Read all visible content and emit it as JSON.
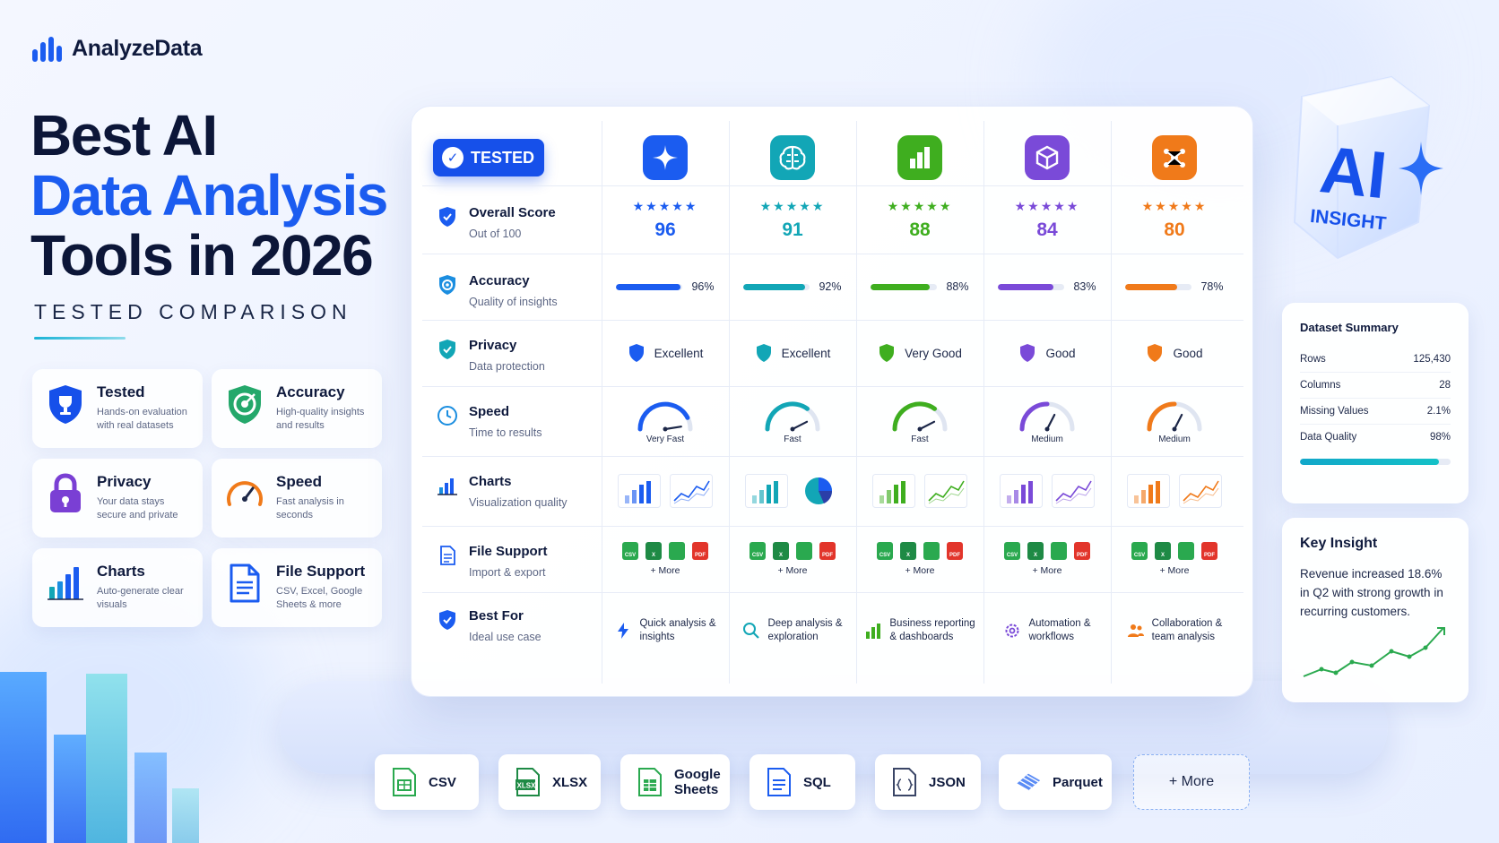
{
  "brand": {
    "name": "AnalyzeData"
  },
  "hero": {
    "line1": "Best AI",
    "line2": "Data Analysis",
    "line3": "Tools in 2026",
    "subtitle": "TESTED COMPARISON"
  },
  "features": [
    {
      "title": "Tested",
      "desc": "Hands-on evaluation with real datasets",
      "icon": "trophy-shield-icon"
    },
    {
      "title": "Accuracy",
      "desc": "High-quality insights and results",
      "icon": "target-shield-icon"
    },
    {
      "title": "Privacy",
      "desc": "Your data stays secure and private",
      "icon": "lock-icon"
    },
    {
      "title": "Speed",
      "desc": "Fast analysis in seconds",
      "icon": "speedometer-icon"
    },
    {
      "title": "Charts",
      "desc": "Auto-generate clear visuals",
      "icon": "bar-chart-icon"
    },
    {
      "title": "File Support",
      "desc": "CSV, Excel, Google Sheets & more",
      "icon": "document-icon"
    }
  ],
  "table": {
    "badge": "TESTED",
    "rows": [
      {
        "title": "Overall Score",
        "sub": "Out of 100"
      },
      {
        "title": "Accuracy",
        "sub": "Quality of insights"
      },
      {
        "title": "Privacy",
        "sub": "Data protection"
      },
      {
        "title": "Speed",
        "sub": "Time to results"
      },
      {
        "title": "Charts",
        "sub": "Visualization quality"
      },
      {
        "title": "File Support",
        "sub": "Import & export"
      },
      {
        "title": "Best For",
        "sub": "Ideal use case"
      }
    ],
    "tools": [
      {
        "icon": "sparkle-icon",
        "color": "#1b5cf0",
        "stars": "★★★★★",
        "score": "96",
        "accuracy": 96,
        "accuracy_label": "96%",
        "privacy": "Excellent",
        "speed": "Very Fast",
        "speed_level": 0.85,
        "best_line1": "Quick analysis &",
        "best_line2": "insights",
        "best_icon": "lightning-icon",
        "more": "+ More"
      },
      {
        "icon": "brain-icon",
        "color": "#12a6b6",
        "stars": "★★★★★",
        "score": "91",
        "accuracy": 92,
        "accuracy_label": "92%",
        "privacy": "Excellent",
        "speed": "Fast",
        "speed_level": 0.7,
        "best_line1": "Deep analysis &",
        "best_line2": "exploration",
        "best_icon": "search-icon",
        "more": "+ More"
      },
      {
        "icon": "bar-chart-icon",
        "color": "#3fae1f",
        "stars": "★★★★★",
        "score": "88",
        "accuracy": 88,
        "accuracy_label": "88%",
        "privacy": "Very Good",
        "speed": "Fast",
        "speed_level": 0.7,
        "best_line1": "Business reporting",
        "best_line2": "& dashboards",
        "best_icon": "bar-chart-icon",
        "more": "+ More"
      },
      {
        "icon": "cube-icon",
        "color": "#7a4ad8",
        "stars": "★★★★★",
        "score": "84",
        "accuracy": 83,
        "accuracy_label": "83%",
        "privacy": "Good",
        "speed": "Medium",
        "speed_level": 0.5,
        "best_line1": "Automation &",
        "best_line2": "workflows",
        "best_icon": "gear-icon",
        "more": "+ More"
      },
      {
        "icon": "network-icon",
        "color": "#f07a1a",
        "stars": "★★★★★",
        "score": "80",
        "accuracy": 78,
        "accuracy_label": "78%",
        "privacy": "Good",
        "speed": "Medium",
        "speed_level": 0.5,
        "best_line1": "Collaboration &",
        "best_line2": "team analysis",
        "best_icon": "users-icon",
        "more": "+ More"
      }
    ],
    "file_icons": [
      "CSV",
      "X",
      "",
      "PDF"
    ]
  },
  "cube": {
    "line1": "AI",
    "line2": "INSIGHT"
  },
  "summary": {
    "title": "Dataset Summary",
    "rows": [
      {
        "label": "Rows",
        "value": "125,430"
      },
      {
        "label": "Columns",
        "value": "28"
      },
      {
        "label": "Missing Values",
        "value": "2.1%"
      },
      {
        "label": "Data Quality",
        "value": "98%"
      }
    ]
  },
  "insight": {
    "title": "Key Insight",
    "text": "Revenue increased 18.6% in Q2 with strong growth in recurring customers."
  },
  "formats": [
    {
      "label": "CSV",
      "icon": "csv-file-icon"
    },
    {
      "label": "XLSX",
      "icon": "excel-file-icon"
    },
    {
      "label": "Google Sheets",
      "icon": "sheets-file-icon"
    },
    {
      "label": "SQL",
      "icon": "sql-file-icon"
    },
    {
      "label": "JSON",
      "icon": "json-file-icon"
    },
    {
      "label": "Parquet",
      "icon": "parquet-icon"
    },
    {
      "label": "+ More",
      "icon": ""
    }
  ],
  "colors": {
    "accent": "#1b5cf0",
    "teal": "#12a6b6",
    "green": "#3fae1f",
    "purple": "#7a4ad8",
    "orange": "#f07a1a"
  }
}
